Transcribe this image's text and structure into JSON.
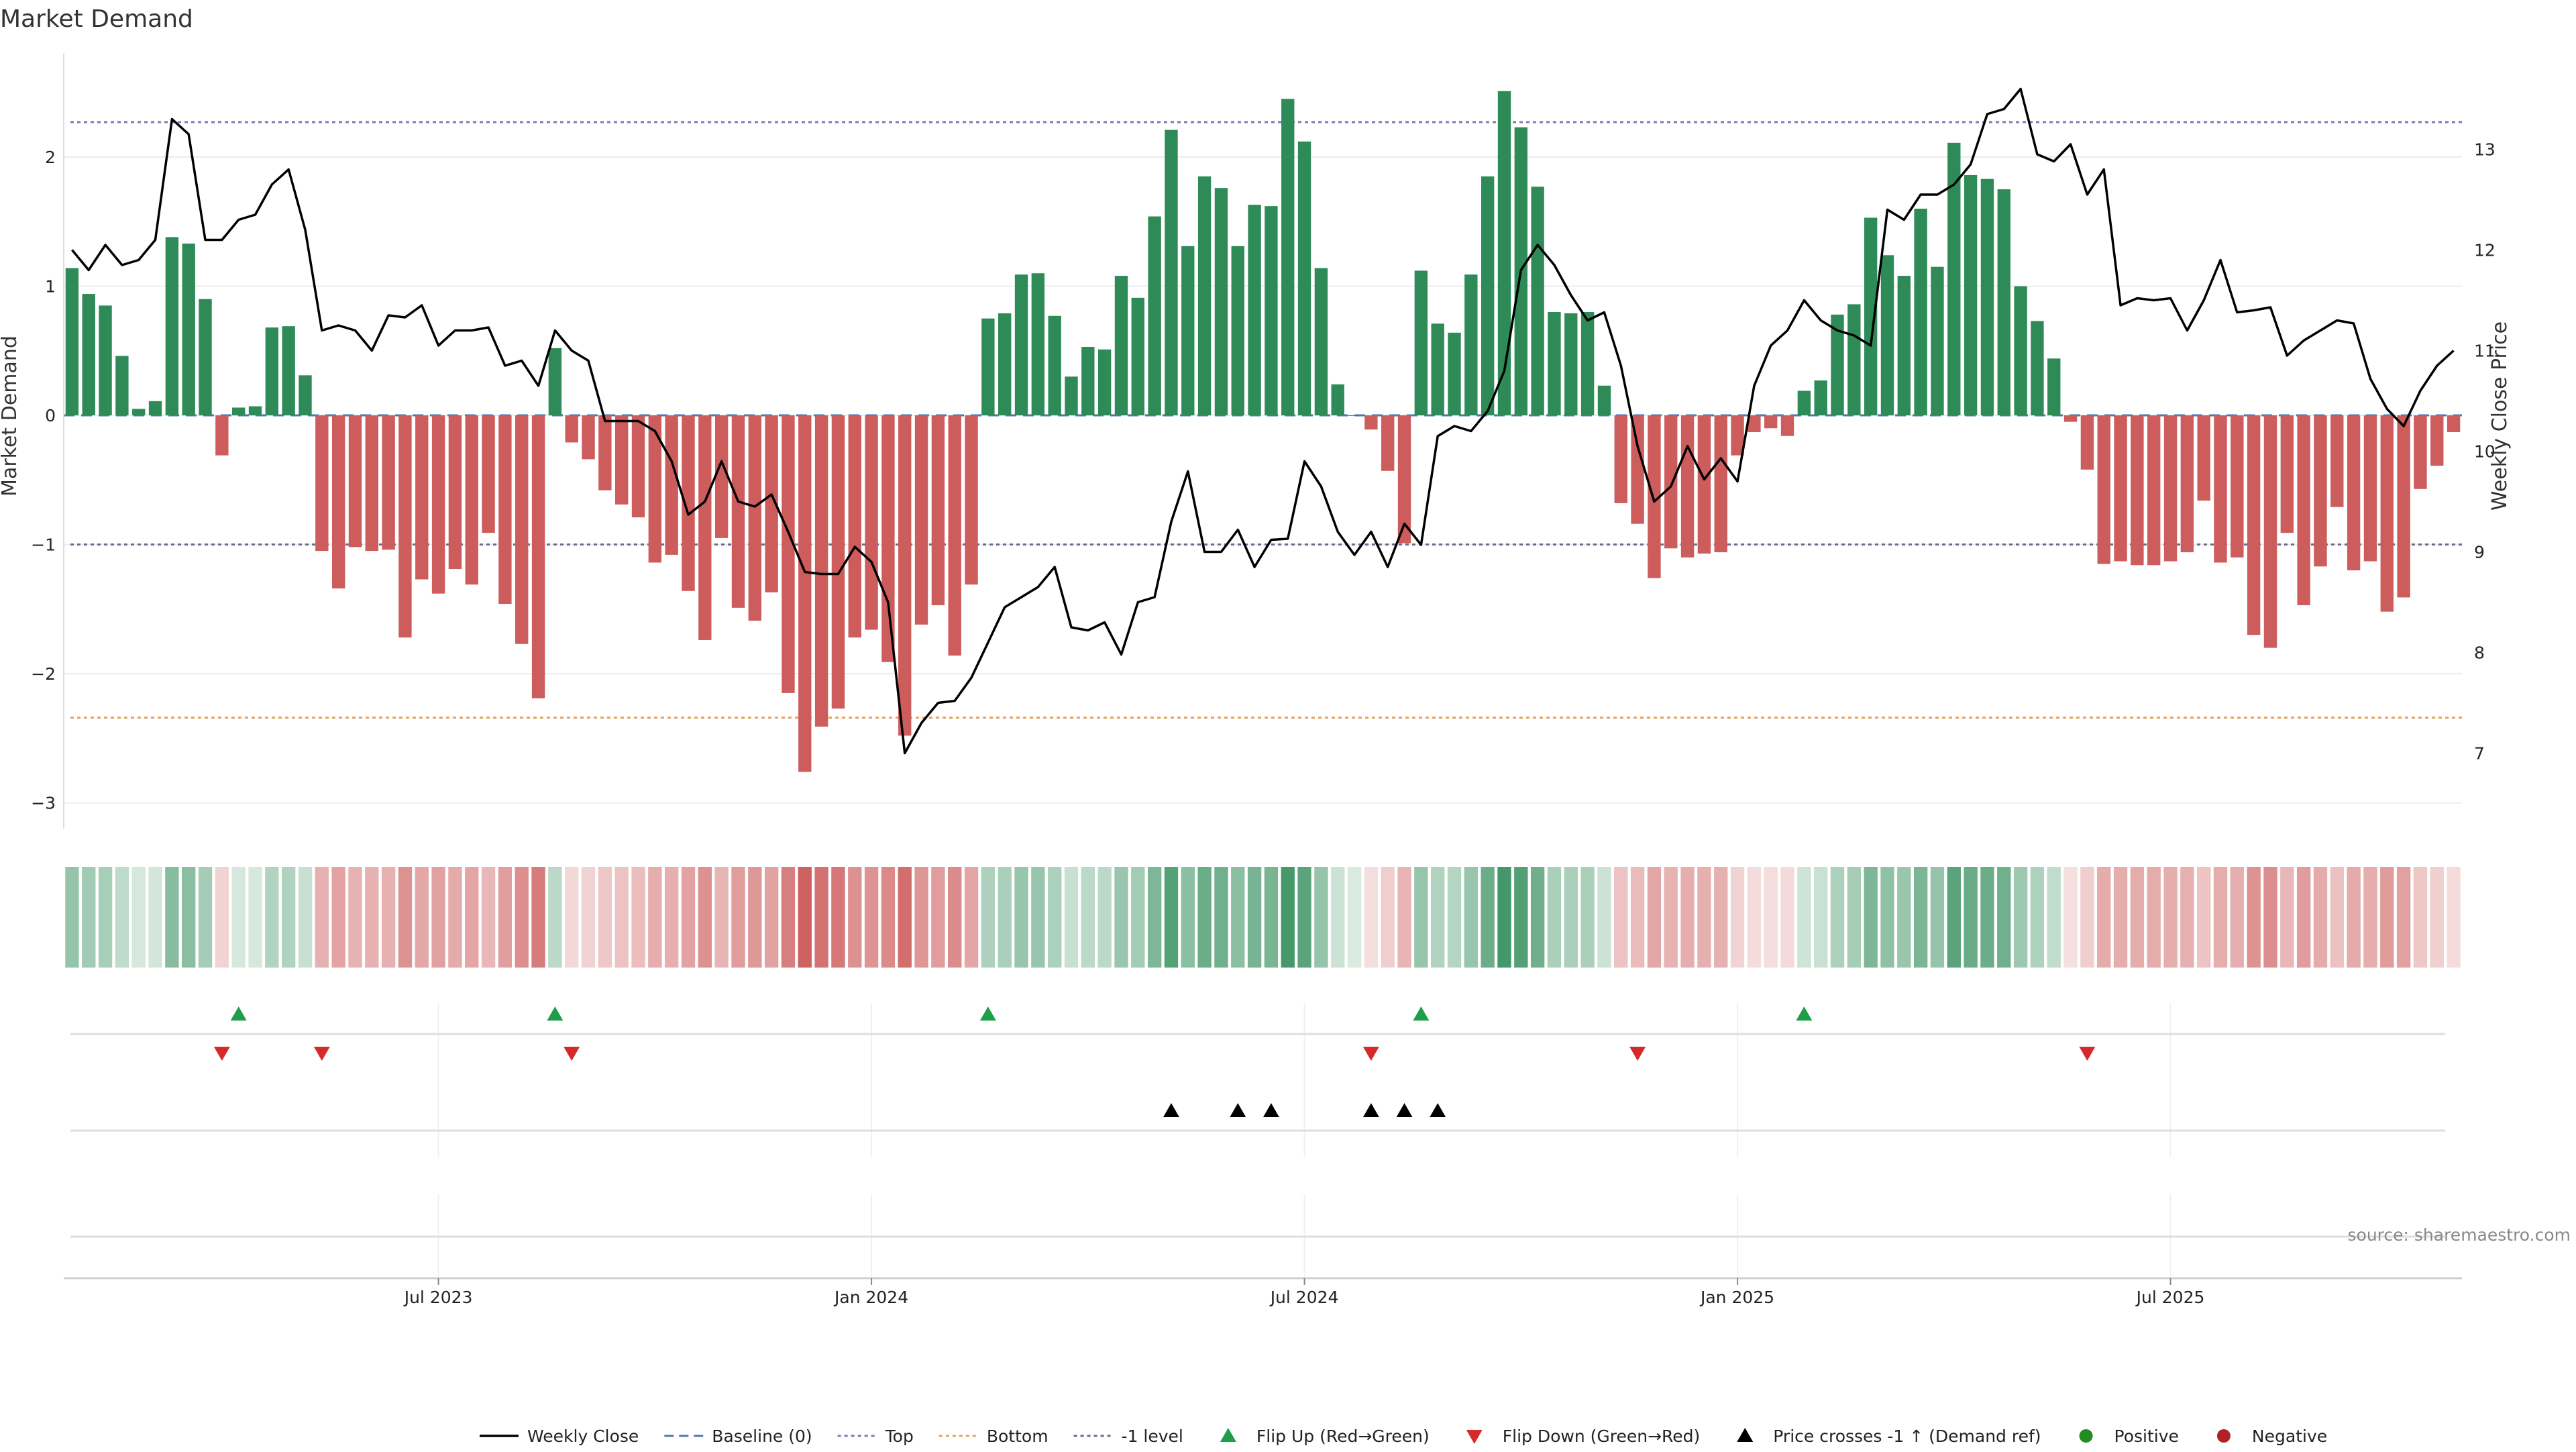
{
  "chart_data": {
    "type": "bar",
    "title": "Market Demand",
    "ylabel": "Market Demand",
    "y2label": "Weekly Close Price",
    "ylim": [
      -3.2,
      2.8
    ],
    "y2lim": [
      6.25,
      13.95
    ],
    "yticks": [
      -3,
      -2,
      -1,
      0,
      1,
      2
    ],
    "y2ticks": [
      7,
      8,
      9,
      10,
      11,
      12,
      13
    ],
    "xticks": [
      {
        "label": "Jul 2023",
        "index": 22
      },
      {
        "label": "Jan 2024",
        "index": 48
      },
      {
        "label": "Jul 2024",
        "index": 74
      },
      {
        "label": "Jan 2025",
        "index": 100
      },
      {
        "label": "Jul 2025",
        "index": 126
      }
    ],
    "levels": {
      "top": 2.27,
      "bottom": -2.34,
      "minus_one": -1.0
    },
    "demand": [
      1.14,
      0.94,
      0.85,
      0.46,
      0.05,
      0.11,
      1.38,
      1.33,
      0.9,
      -0.31,
      0.06,
      0.07,
      0.68,
      0.69,
      0.31,
      -1.05,
      -1.34,
      -1.02,
      -1.05,
      -1.04,
      -1.72,
      -1.27,
      -1.38,
      -1.19,
      -1.31,
      -0.91,
      -1.46,
      -1.77,
      -2.19,
      0.52,
      -0.21,
      -0.34,
      -0.58,
      -0.69,
      -0.79,
      -1.14,
      -1.08,
      -1.36,
      -1.74,
      -0.95,
      -1.49,
      -1.59,
      -1.37,
      -2.15,
      -2.76,
      -2.41,
      -2.27,
      -1.72,
      -1.66,
      -1.91,
      -2.48,
      -1.62,
      -1.47,
      -1.86,
      -1.31,
      0.75,
      0.79,
      1.09,
      1.1,
      0.77,
      0.3,
      0.53,
      0.51,
      1.08,
      0.91,
      1.54,
      2.21,
      1.31,
      1.85,
      1.76,
      1.31,
      1.63,
      1.62,
      2.45,
      2.12,
      1.14,
      0.24,
      0.0,
      -0.11,
      -0.43,
      -0.99,
      1.12,
      0.71,
      0.64,
      1.09,
      1.85,
      2.51,
      2.23,
      1.77,
      0.8,
      0.79,
      0.8,
      0.23,
      -0.68,
      -0.84,
      -1.26,
      -1.03,
      -1.1,
      -1.07,
      -1.06,
      -0.31,
      -0.13,
      -0.1,
      -0.16,
      0.19,
      0.27,
      0.78,
      0.86,
      1.53,
      1.24,
      1.08,
      1.6,
      1.15,
      2.11,
      1.86,
      1.83,
      1.75,
      1.0,
      0.73,
      0.44,
      -0.05,
      -0.42,
      -1.15,
      -1.13,
      -1.16,
      -1.16,
      -1.13,
      -1.06,
      -0.66,
      -1.14,
      -1.1,
      -1.7,
      -1.8,
      -0.91,
      -1.47,
      -1.17,
      -0.71,
      -1.2,
      -1.13,
      -1.52,
      -1.41,
      -0.57,
      -0.39,
      -0.13
    ],
    "price": [
      12.0,
      11.8,
      12.05,
      11.85,
      11.9,
      12.1,
      13.3,
      13.15,
      12.1,
      12.1,
      12.3,
      12.35,
      12.65,
      12.8,
      12.2,
      11.2,
      11.25,
      11.2,
      11.0,
      11.35,
      11.33,
      11.45,
      11.05,
      11.2,
      11.2,
      11.23,
      10.85,
      10.9,
      10.65,
      11.2,
      11.0,
      10.9,
      10.3,
      10.3,
      10.3,
      10.2,
      9.9,
      9.37,
      9.5,
      9.9,
      9.5,
      9.45,
      9.57,
      9.2,
      8.8,
      8.78,
      8.78,
      9.05,
      8.9,
      8.5,
      7.0,
      7.3,
      7.5,
      7.52,
      7.75,
      8.1,
      8.45,
      8.55,
      8.65,
      8.85,
      8.25,
      8.22,
      8.3,
      7.98,
      8.5,
      8.55,
      9.3,
      9.8,
      9.0,
      9.0,
      9.22,
      8.85,
      9.12,
      9.13,
      9.9,
      9.65,
      9.2,
      8.97,
      9.2,
      8.85,
      9.28,
      9.07,
      10.15,
      10.25,
      10.2,
      10.4,
      10.8,
      11.8,
      12.05,
      11.85,
      11.55,
      11.3,
      11.38,
      10.85,
      10.05,
      9.5,
      9.65,
      10.05,
      9.72,
      9.93,
      9.7,
      10.65,
      11.05,
      11.2,
      11.5,
      11.3,
      11.2,
      11.15,
      11.05,
      12.4,
      12.3,
      12.55,
      12.55,
      12.65,
      12.85,
      13.35,
      13.4,
      13.6,
      12.95,
      12.88,
      13.05,
      12.55,
      12.8,
      11.45,
      11.52,
      11.5,
      11.52,
      11.2,
      11.5,
      11.9,
      11.38,
      11.4,
      11.43,
      10.95,
      11.1,
      11.2,
      11.3,
      11.27,
      10.72,
      10.42,
      10.25,
      10.6,
      10.85,
      11.0
    ],
    "flip_up_indices": [
      10,
      29,
      55,
      81,
      104
    ],
    "flip_down_indices": [
      9,
      15,
      30,
      78,
      94,
      121
    ],
    "price_cross_indices": [
      66,
      70,
      72,
      78,
      80,
      82
    ],
    "legend": {
      "weekly_close": "Weekly Close",
      "baseline": "Baseline (0)",
      "top": "Top",
      "bottom": "Bottom",
      "minus_one": "-1 level",
      "flip_up": "Flip Up (Red→Green)",
      "flip_down": "Flip Down (Green→Red)",
      "price_cross": "Price crosses -1 ↑ (Demand ref)",
      "positive": "Positive",
      "negative": "Negative"
    },
    "source": "source: sharemaestro.com",
    "colors": {
      "positive": "#2e8b57",
      "negative": "#cd5c5c",
      "price": "#000000",
      "top_line": "#7a7ab8",
      "bottom_line": "#e8a15c",
      "minus_one_line": "#6a6a8a",
      "baseline": "#4a78b5",
      "flip_up": "#1f9e4a",
      "flip_down": "#d42a2a",
      "positive_dot": "#228b22",
      "negative_dot": "#b22222"
    }
  }
}
